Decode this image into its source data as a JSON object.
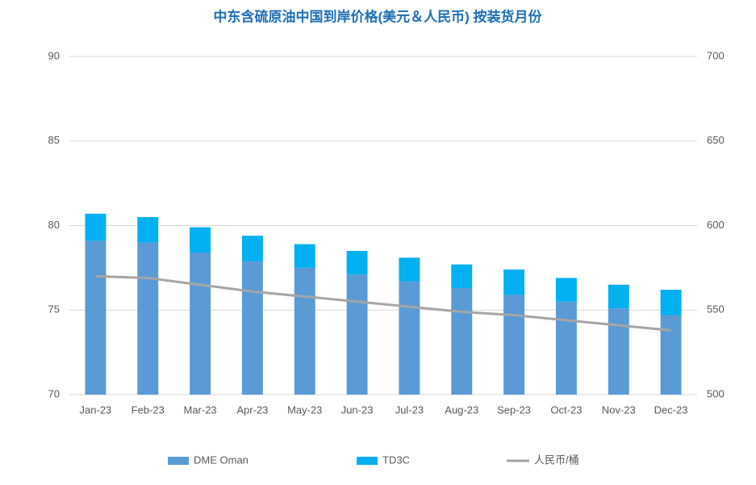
{
  "chart_data": {
    "type": "bar_line",
    "title": "中东含硫原油中国到岸价格(美元＆人民币) 按装货月份",
    "categories": [
      "Jan-23",
      "Feb-23",
      "Mar-23",
      "Apr-23",
      "May-23",
      "Jun-23",
      "Jul-23",
      "Aug-23",
      "Sep-23",
      "Oct-23",
      "Nov-23",
      "Dec-23"
    ],
    "series": [
      {
        "name": "DME Oman",
        "color": "#5b9bd5",
        "kind": "bar",
        "values": [
          79.1,
          79.0,
          78.4,
          77.9,
          77.5,
          77.1,
          76.7,
          76.3,
          75.9,
          75.5,
          75.1,
          74.7
        ]
      },
      {
        "name": "TD3C",
        "color": "#00b0f0",
        "kind": "bar",
        "values": [
          1.6,
          1.5,
          1.5,
          1.5,
          1.4,
          1.4,
          1.4,
          1.4,
          1.5,
          1.4,
          1.4,
          1.5
        ]
      },
      {
        "name": "人民币/桶",
        "color": "#a5a5a5",
        "kind": "line",
        "axis": "y2",
        "values": [
          570,
          569,
          565,
          561,
          558,
          555,
          552,
          549,
          547,
          544,
          541,
          538
        ]
      }
    ],
    "ylim": [
      70,
      90
    ],
    "yticks": [
      70,
      75,
      80,
      85,
      90
    ],
    "y2lim": [
      500,
      700
    ],
    "y2ticks": [
      500,
      550,
      600,
      650,
      700
    ],
    "grid": true,
    "legend": "bottom"
  }
}
